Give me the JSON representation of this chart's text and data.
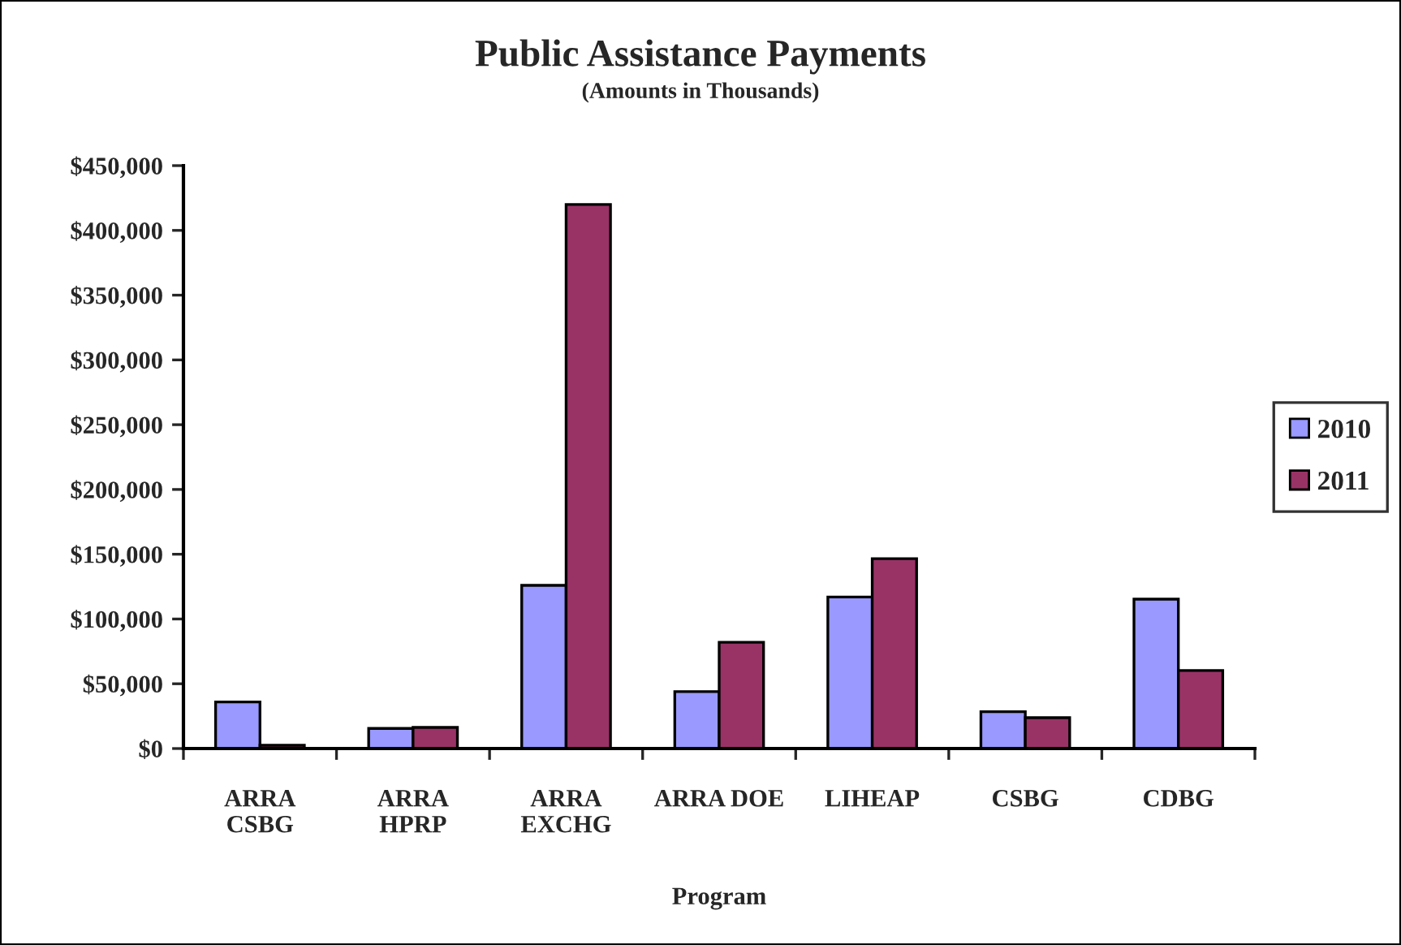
{
  "chart_data": {
    "type": "bar",
    "title": "Public Assistance Payments",
    "subtitle": "(Amounts in Thousands)",
    "xlabel": "Program",
    "categories": [
      "ARRA\nCSBG",
      "ARRA\nHPRP",
      "ARRA\nEXCHG",
      "ARRA DOE",
      "LIHEAP",
      "CSBG",
      "CDBG"
    ],
    "series": [
      {
        "name": "2010",
        "color": "#9999ff",
        "values": [
          36000,
          15500,
          126000,
          44000,
          117000,
          28400,
          115300
        ]
      },
      {
        "name": "2011",
        "color": "#993366",
        "values": [
          2500,
          16300,
          420000,
          82000,
          146600,
          23800,
          60200
        ]
      }
    ],
    "ylim": [
      0,
      450000
    ],
    "yticks": [
      {
        "value": 0,
        "label": "$0"
      },
      {
        "value": 50000,
        "label": "$50,000"
      },
      {
        "value": 100000,
        "label": "$100,000"
      },
      {
        "value": 150000,
        "label": "$150,000"
      },
      {
        "value": 200000,
        "label": "$200,000"
      },
      {
        "value": 250000,
        "label": "$250,000"
      },
      {
        "value": 300000,
        "label": "$300,000"
      },
      {
        "value": 350000,
        "label": "$350,000"
      },
      {
        "value": 400000,
        "label": "$400,000"
      },
      {
        "value": 450000,
        "label": "$450,000"
      }
    ],
    "grid": false,
    "legend": "right"
  }
}
